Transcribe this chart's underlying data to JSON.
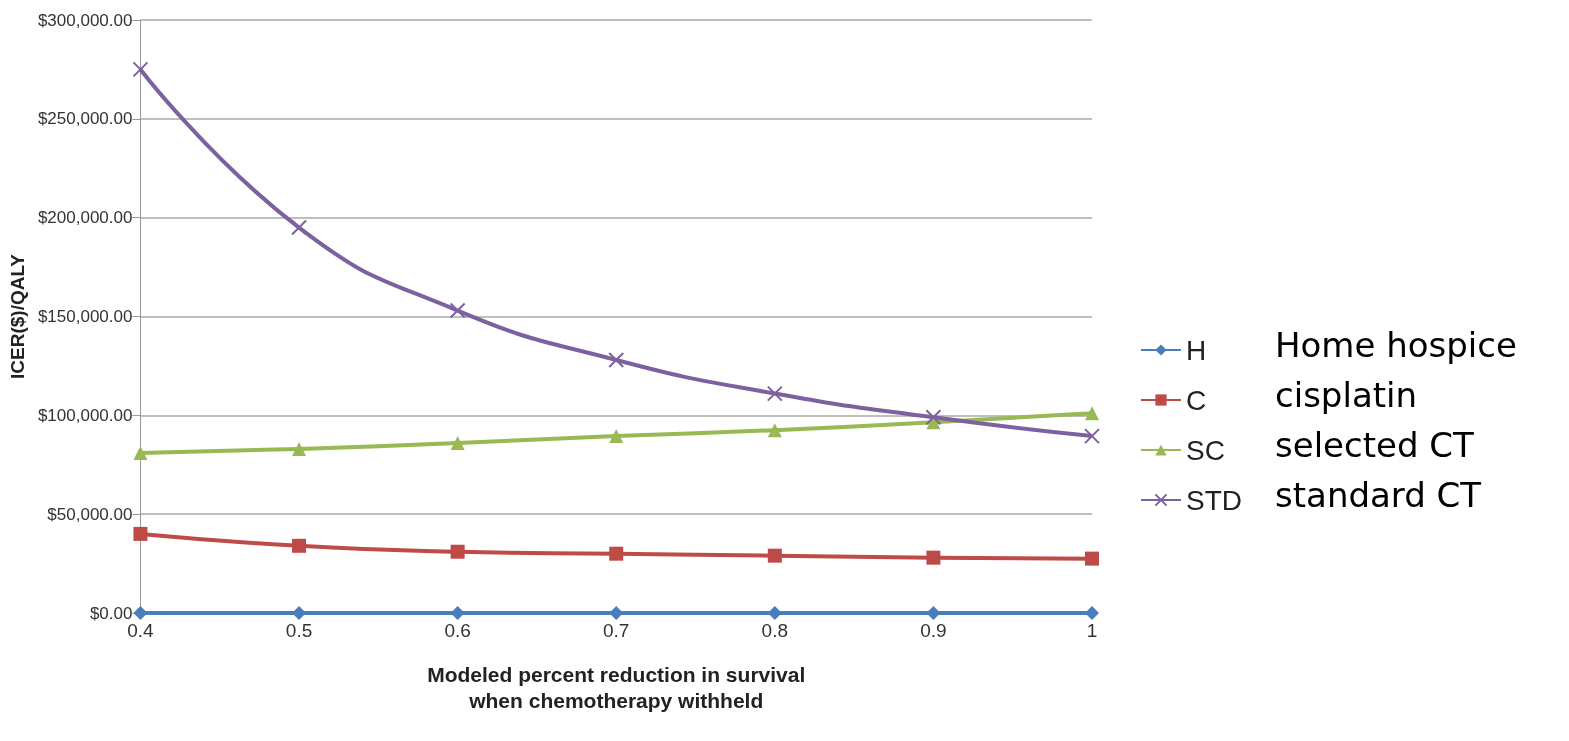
{
  "chart_data": {
    "type": "line",
    "xlabel": "Modeled percent reduction in survival\nwhen chemotherapy withheld",
    "ylabel": "ICER($)/QALY",
    "x": [
      0.4,
      0.5,
      0.6,
      0.7,
      0.8,
      0.9,
      1
    ],
    "series": [
      {
        "name": "H",
        "color": "#4a7ebb",
        "marker": "diamond",
        "values": [
          0,
          0,
          0,
          0,
          0,
          0,
          0
        ]
      },
      {
        "name": "C",
        "color": "#be4b48",
        "marker": "square",
        "values": [
          40000,
          34000,
          31000,
          30000,
          29000,
          28000,
          27500
        ]
      },
      {
        "name": "SC",
        "color": "#98b954",
        "marker": "triangle",
        "values": [
          81000,
          83000,
          86000,
          89500,
          92500,
          96500,
          101000
        ]
      },
      {
        "name": "STD",
        "color": "#7d60a0",
        "marker": "cross",
        "values": [
          275000,
          195000,
          153000,
          128000,
          111000,
          99000,
          89500
        ]
      }
    ],
    "xlim": [
      0.4,
      1
    ],
    "xticks": [
      0.4,
      0.5,
      0.6,
      0.7,
      0.8,
      0.9,
      1
    ],
    "ylim": [
      0,
      300000
    ],
    "yticks": [
      {
        "value": 0,
        "label": "$0.00"
      },
      {
        "value": 50000,
        "label": "$50,000.00"
      },
      {
        "value": 100000,
        "label": "$100,000.00"
      },
      {
        "value": 150000,
        "label": "$150,000.00"
      },
      {
        "value": 200000,
        "label": "$200,000.00"
      },
      {
        "value": 250000,
        "label": "$250,000.00"
      },
      {
        "value": 300000,
        "label": "$300,000.00"
      }
    ],
    "grid": "y",
    "legend": "right",
    "line_style": "solid",
    "annotations": [
      "Home hospice",
      "cisplatin",
      "selected CT",
      "standard CT"
    ]
  }
}
